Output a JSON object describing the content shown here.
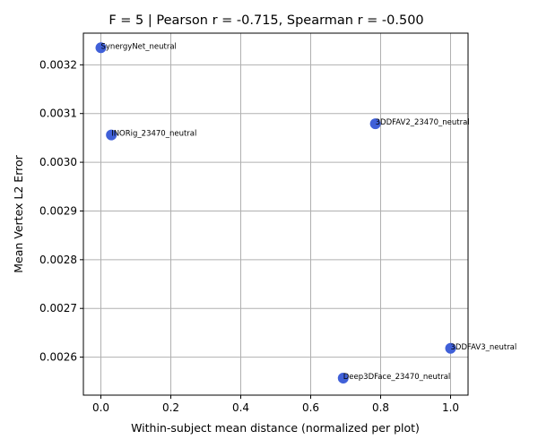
{
  "chart_data": {
    "type": "scatter",
    "title": "F = 5 | Pearson r = -0.715, Spearman r = -0.500",
    "xlabel": "Within-subject mean distance (normalized per plot)",
    "ylabel": "Mean Vertex L2 Error",
    "xlim": [
      -0.05,
      1.05
    ],
    "ylim": [
      0.002522,
      0.003265
    ],
    "xticks": [
      0.0,
      0.2,
      0.4,
      0.6,
      0.8,
      1.0
    ],
    "xtick_labels": [
      "0.0",
      "0.2",
      "0.4",
      "0.6",
      "0.8",
      "1.0"
    ],
    "yticks": [
      0.0026,
      0.0027,
      0.0028,
      0.0029,
      0.003,
      0.0031,
      0.0032
    ],
    "ytick_labels": [
      "0.0026",
      "0.0027",
      "0.0028",
      "0.0029",
      "0.0030",
      "0.0031",
      "0.0032"
    ],
    "grid": true,
    "marker_color": "#4060d8",
    "points": [
      {
        "label": "SynergyNet_neutral",
        "x": 0.0,
        "y": 0.003235
      },
      {
        "label": "3DDFAV2_23470_neutral",
        "x": 0.785,
        "y": 0.003079
      },
      {
        "label": "INORig_23470_neutral",
        "x": 0.03,
        "y": 0.003056
      },
      {
        "label": "3DDFAV3_neutral",
        "x": 1.0,
        "y": 0.002618
      },
      {
        "label": "Deep3DFace_23470_neutral",
        "x": 0.693,
        "y": 0.002557
      }
    ]
  }
}
